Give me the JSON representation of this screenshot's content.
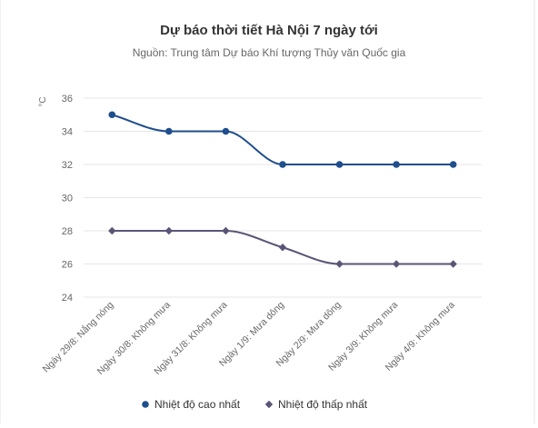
{
  "chart_data": {
    "type": "line",
    "title": "Dự báo thời tiết Hà Nội 7 ngày tới",
    "subtitle": "Nguồn: Trung tâm Dự báo Khí tượng Thủy văn Quốc gia",
    "y_unit": "°C",
    "categories": [
      "Ngày 29/8: Nắng nóng",
      "Ngày 30/8: Không mưa",
      "Ngày 31/8: Không mưa",
      "Ngày 1/9: Mưa dông",
      "Ngày 2/9: Mưa dông",
      "Ngày 3/9: Không mưa",
      "Ngày 4/9: Không mưa"
    ],
    "series": [
      {
        "name": "Nhiệt độ cao nhất",
        "values": [
          35,
          34,
          34,
          32,
          32,
          32,
          32
        ],
        "color": "#1f4e8c",
        "marker": "circle"
      },
      {
        "name": "Nhiệt độ thấp nhất",
        "values": [
          28,
          28,
          28,
          27,
          26,
          26,
          26
        ],
        "color": "#5a5577",
        "marker": "diamond"
      }
    ],
    "y_ticks": [
      24,
      26,
      28,
      30,
      32,
      34,
      36
    ],
    "ylim": [
      24,
      36
    ],
    "grid": true,
    "smooth": true,
    "legend_position": "bottom"
  }
}
